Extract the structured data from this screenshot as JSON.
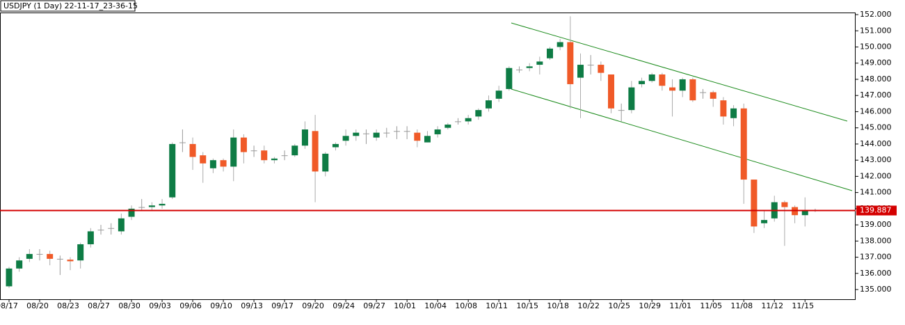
{
  "chart_data": {
    "type": "candlestick",
    "title": "USDJPY (1 Day) 22-11-17_23-36-15",
    "up_color": "#0e7c45",
    "down_color": "#f05a28",
    "price_line_color": "#d40000",
    "categories": [
      "08/17",
      null,
      null,
      "08/20",
      null,
      null,
      "08/23",
      null,
      null,
      "08/27",
      null,
      null,
      "08/30",
      null,
      null,
      "09/03",
      null,
      null,
      "09/06",
      null,
      null,
      "09/10",
      null,
      null,
      "09/13",
      null,
      null,
      "09/17",
      null,
      null,
      "09/20",
      null,
      null,
      "09/24",
      null,
      null,
      "09/27",
      null,
      null,
      "10/01",
      null,
      null,
      "10/04",
      null,
      null,
      "10/08",
      null,
      null,
      "10/11",
      null,
      null,
      "10/15",
      null,
      null,
      "10/18",
      null,
      null,
      "10/22",
      null,
      null,
      "10/25",
      null,
      null,
      "10/29",
      null,
      null,
      "11/01",
      null,
      null,
      "11/05",
      null,
      null,
      "11/08",
      null,
      null,
      "11/12",
      null,
      null,
      "11/15",
      null
    ],
    "open": [
      135.2,
      136.3,
      136.9,
      137.2,
      137.2,
      136.9,
      136.85,
      136.8,
      137.8,
      138.7,
      138.8,
      138.6,
      139.5,
      140.1,
      140.1,
      140.2,
      140.7,
      144.1,
      144.0,
      143.3,
      142.5,
      143.0,
      142.6,
      144.4,
      143.6,
      143.6,
      143.0,
      143.3,
      143.3,
      143.9,
      144.8,
      142.3,
      143.8,
      144.2,
      144.5,
      144.65,
      144.4,
      144.7,
      144.8,
      144.8,
      144.7,
      144.1,
      144.6,
      145.0,
      145.4,
      145.4,
      145.7,
      146.2,
      146.8,
      147.4,
      148.6,
      148.7,
      148.9,
      149.3,
      150.0,
      150.3,
      148.1,
      148.9,
      148.9,
      148.3,
      146.1,
      146.1,
      147.7,
      147.9,
      148.3,
      147.5,
      147.3,
      148.0,
      147.2,
      147.2,
      146.7,
      145.6,
      146.2,
      141.8,
      139.1,
      139.4,
      140.4,
      140.1,
      139.6,
      139.9
    ],
    "high": [
      136.4,
      137.0,
      137.5,
      137.5,
      137.4,
      137.1,
      137.0,
      137.9,
      138.8,
      139.0,
      139.1,
      139.7,
      140.2,
      140.6,
      140.4,
      140.6,
      144.1,
      144.9,
      144.4,
      143.5,
      143.1,
      143.1,
      144.9,
      144.6,
      143.9,
      143.9,
      143.2,
      143.6,
      144.0,
      145.4,
      145.8,
      143.5,
      144.1,
      144.9,
      144.9,
      144.9,
      144.9,
      145.0,
      145.1,
      145.1,
      144.9,
      144.8,
      145.1,
      145.3,
      145.6,
      145.8,
      146.2,
      147.0,
      147.6,
      148.8,
      148.8,
      149.0,
      149.4,
      150.0,
      150.5,
      151.9,
      149.6,
      149.5,
      149.1,
      148.3,
      146.5,
      147.9,
      148.1,
      148.4,
      148.4,
      148.0,
      148.1,
      148.1,
      147.4,
      147.3,
      146.9,
      146.4,
      146.5,
      141.8,
      139.9,
      140.8,
      140.5,
      140.2,
      140.7,
      140.0
    ],
    "low": [
      135.1,
      136.1,
      136.7,
      136.8,
      136.5,
      135.9,
      136.2,
      136.3,
      137.6,
      138.4,
      138.4,
      138.4,
      139.3,
      139.9,
      139.9,
      140.0,
      140.6,
      143.5,
      142.4,
      141.6,
      142.2,
      142.3,
      141.7,
      142.8,
      143.2,
      142.8,
      142.8,
      143.0,
      143.2,
      143.7,
      140.4,
      142.0,
      143.6,
      143.9,
      144.2,
      144.0,
      144.2,
      144.4,
      144.3,
      144.3,
      143.8,
      144.1,
      144.4,
      144.9,
      145.2,
      145.2,
      145.5,
      146.0,
      146.6,
      147.3,
      148.4,
      148.5,
      148.3,
      149.2,
      149.8,
      146.2,
      145.6,
      148.3,
      147.9,
      145.9,
      145.4,
      145.9,
      147.5,
      147.8,
      147.3,
      145.7,
      146.9,
      146.6,
      146.8,
      146.3,
      145.2,
      145.1,
      140.3,
      138.5,
      138.8,
      139.2,
      137.7,
      139.1,
      138.9,
      139.8
    ],
    "close": [
      136.3,
      136.8,
      137.2,
      137.2,
      136.9,
      136.9,
      136.75,
      137.8,
      138.6,
      138.7,
      138.8,
      139.4,
      140.0,
      140.1,
      140.2,
      140.3,
      144.0,
      144.1,
      143.2,
      142.8,
      143.0,
      142.6,
      144.4,
      143.5,
      143.6,
      143.0,
      143.1,
      143.3,
      143.9,
      144.9,
      142.3,
      143.4,
      144.0,
      144.5,
      144.7,
      144.65,
      144.7,
      144.7,
      144.8,
      144.8,
      144.2,
      144.5,
      144.9,
      145.2,
      145.4,
      145.6,
      146.1,
      146.7,
      147.3,
      148.7,
      148.6,
      148.8,
      149.1,
      149.9,
      150.3,
      147.7,
      148.9,
      148.9,
      148.4,
      146.2,
      146.1,
      147.5,
      147.9,
      148.3,
      147.6,
      147.3,
      148.0,
      146.7,
      147.2,
      146.8,
      145.7,
      146.2,
      141.8,
      138.9,
      139.3,
      140.4,
      140.1,
      139.6,
      139.9,
      139.9
    ],
    "ylim": [
      134.4,
      152.13
    ],
    "yticks": [
      {
        "value": 135,
        "label": "135.000"
      },
      {
        "value": 136,
        "label": "136.000"
      },
      {
        "value": 137,
        "label": "137.000"
      },
      {
        "value": 138,
        "label": "138.000"
      },
      {
        "value": 139,
        "label": "139.000"
      },
      {
        "value": 140,
        "label": "140.000"
      },
      {
        "value": 141,
        "label": "141.000"
      },
      {
        "value": 142,
        "label": "142.000"
      },
      {
        "value": 143,
        "label": "143.000"
      },
      {
        "value": 144,
        "label": "144.000"
      },
      {
        "value": 145,
        "label": "145.000"
      },
      {
        "value": 146,
        "label": "146.000"
      },
      {
        "value": 147,
        "label": "147.000"
      },
      {
        "value": 148,
        "label": "148.000"
      },
      {
        "value": 149,
        "label": "149.000"
      },
      {
        "value": 150,
        "label": "150.000"
      },
      {
        "value": 151,
        "label": "151.000"
      },
      {
        "value": 152,
        "label": "152.000"
      }
    ],
    "current_price": 139.887
  }
}
